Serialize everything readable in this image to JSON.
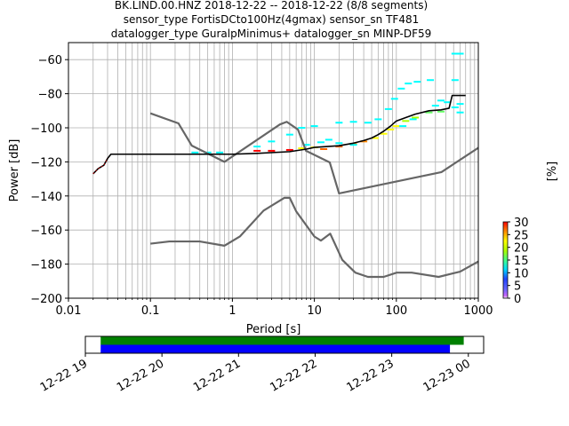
{
  "title_lines": [
    "BK.LIND.00.HNZ   2018-12-22 -- 2018-12-22  (8/8 segments)",
    "sensor_type FortisDCto100Hz(4gmax) sensor_sn TF481",
    "datalogger_type GuralpMinimus+ datalogger_sn MINP-DF59"
  ],
  "chart_data": [
    {
      "type": "line",
      "xlabel": "Period [s]",
      "ylabel": "Power [dB]",
      "xscale": "log",
      "xlim": [
        0.01,
        1000
      ],
      "ylim": [
        -200,
        -50
      ],
      "grid": true,
      "x_ticks": [
        "0.01",
        "0.1",
        "1",
        "10",
        "100",
        "1000"
      ],
      "y_ticks": [
        "−60",
        "−80",
        "−100",
        "−120",
        "−140",
        "−160",
        "−180",
        "−200"
      ],
      "colorbar": {
        "label": "[%]",
        "range": [
          0,
          30
        ],
        "ticks": [
          "0",
          "5",
          "10",
          "15",
          "20",
          "25",
          "30"
        ],
        "colormap": "pqlx"
      },
      "series": [
        {
          "role": "noise-model-high",
          "color": "#666666",
          "points": [
            [
              0.1,
              -91.5
            ],
            [
              0.22,
              -97.4
            ],
            [
              0.32,
              -110.5
            ],
            [
              0.8,
              -120
            ],
            [
              3.8,
              -98
            ],
            [
              4.6,
              -96.5
            ],
            [
              6.3,
              -101
            ],
            [
              7.9,
              -113.5
            ],
            [
              15.4,
              -120.3
            ],
            [
              20,
              -138.5
            ],
            [
              354.8,
              -126
            ],
            [
              10000,
              -80
            ]
          ]
        },
        {
          "role": "noise-model-low",
          "color": "#666666",
          "points": [
            [
              0.1,
              -168
            ],
            [
              0.17,
              -166.7
            ],
            [
              0.4,
              -166.7
            ],
            [
              0.8,
              -169.2
            ],
            [
              1.24,
              -163.7
            ],
            [
              2.4,
              -148.6
            ],
            [
              4.3,
              -141.1
            ],
            [
              5,
              -141.1
            ],
            [
              6,
              -149
            ],
            [
              10,
              -163.8
            ],
            [
              12,
              -166.2
            ],
            [
              15.6,
              -162.1
            ],
            [
              21.9,
              -177.5
            ],
            [
              31.6,
              -185
            ],
            [
              45,
              -187.5
            ],
            [
              70,
              -187.5
            ],
            [
              101,
              -185
            ],
            [
              154,
              -185
            ],
            [
              328,
              -187.5
            ],
            [
              600,
              -184.4
            ],
            [
              10000,
              -151.5
            ]
          ]
        },
        {
          "role": "mode",
          "color": "#000000",
          "points": [
            [
              0.02,
              -127
            ],
            [
              0.023,
              -124
            ],
            [
              0.027,
              -122
            ],
            [
              0.03,
              -118
            ],
            [
              0.033,
              -115.5
            ],
            [
              0.1,
              -115.5
            ],
            [
              1,
              -115.5
            ],
            [
              2,
              -115
            ],
            [
              5,
              -114
            ],
            [
              8,
              -112.5
            ],
            [
              10,
              -111.5
            ],
            [
              20,
              -110.5
            ],
            [
              30,
              -109
            ],
            [
              40,
              -107.5
            ],
            [
              50,
              -106
            ],
            [
              60,
              -104
            ],
            [
              70,
              -102
            ],
            [
              85,
              -99
            ],
            [
              100,
              -96
            ],
            [
              130,
              -94
            ],
            [
              170,
              -92
            ],
            [
              250,
              -90
            ],
            [
              350,
              -89.5
            ],
            [
              440,
              -88.5
            ],
            [
              480,
              -81
            ],
            [
              700,
              -81
            ]
          ]
        }
      ],
      "pdf_cells": [
        {
          "p": 0.35,
          "db": -114.5,
          "pct": 12,
          "color": "#00ffff"
        },
        {
          "p": 0.5,
          "db": -114.5,
          "pct": 12,
          "color": "#00ffff"
        },
        {
          "p": 0.7,
          "db": -114.5,
          "pct": 12,
          "color": "#00ffff"
        },
        {
          "p": 2,
          "db": -113.5,
          "pct": 28,
          "color": "#ff0000"
        },
        {
          "p": 3,
          "db": -113.5,
          "pct": 28,
          "color": "#ff0000"
        },
        {
          "p": 5,
          "db": -113,
          "pct": 28,
          "color": "#ff0000"
        },
        {
          "p": 7,
          "db": -112,
          "pct": 22,
          "color": "#ffff00"
        },
        {
          "p": 10,
          "db": -111.5,
          "pct": 22,
          "color": "#ffff00"
        },
        {
          "p": 13,
          "db": -112.5,
          "pct": 26,
          "color": "#ff6600"
        },
        {
          "p": 20,
          "db": -111,
          "pct": 26,
          "color": "#ff6600"
        },
        {
          "p": 30,
          "db": -109.5,
          "pct": 24,
          "color": "#ff8800"
        },
        {
          "p": 40,
          "db": -108,
          "pct": 24,
          "color": "#ff8800"
        },
        {
          "p": 55,
          "db": -106,
          "pct": 22,
          "color": "#ffff00"
        },
        {
          "p": 70,
          "db": -103.5,
          "pct": 22,
          "color": "#ffff00"
        },
        {
          "p": 85,
          "db": -101,
          "pct": 20,
          "color": "#ffff00"
        },
        {
          "p": 100,
          "db": -99,
          "pct": 20,
          "color": "#ffff00"
        },
        {
          "p": 130,
          "db": -96,
          "pct": 18,
          "color": "#aaff00"
        },
        {
          "p": 170,
          "db": -94,
          "pct": 18,
          "color": "#aaff00"
        },
        {
          "p": 250,
          "db": -91,
          "pct": 16,
          "color": "#66ff66"
        },
        {
          "p": 350,
          "db": -90.5,
          "pct": 16,
          "color": "#66ff66"
        },
        {
          "p": 8,
          "db": -110,
          "pct": 12,
          "color": "#00ffff"
        },
        {
          "p": 12,
          "db": -108.5,
          "pct": 12,
          "color": "#00ffff"
        },
        {
          "p": 15,
          "db": -107,
          "pct": 12,
          "color": "#00ffff"
        },
        {
          "p": 20,
          "db": -109,
          "pct": 12,
          "color": "#00ffff"
        },
        {
          "p": 30,
          "db": -110,
          "pct": 12,
          "color": "#00ffff"
        },
        {
          "p": 20,
          "db": -97,
          "pct": 12,
          "color": "#00ffff"
        },
        {
          "p": 30,
          "db": -96.5,
          "pct": 12,
          "color": "#00ffff"
        },
        {
          "p": 45,
          "db": -97,
          "pct": 12,
          "color": "#00ffff"
        },
        {
          "p": 7,
          "db": -100,
          "pct": 12,
          "color": "#00ffff"
        },
        {
          "p": 10,
          "db": -99,
          "pct": 12,
          "color": "#00ffff"
        },
        {
          "p": 5,
          "db": -104,
          "pct": 12,
          "color": "#00ffff"
        },
        {
          "p": 3,
          "db": -108,
          "pct": 12,
          "color": "#00ffff"
        },
        {
          "p": 2,
          "db": -111,
          "pct": 12,
          "color": "#00ffff"
        },
        {
          "p": 60,
          "db": -95,
          "pct": 12,
          "color": "#00ffff"
        },
        {
          "p": 80,
          "db": -89,
          "pct": 12,
          "color": "#00ffff"
        },
        {
          "p": 95,
          "db": -83,
          "pct": 12,
          "color": "#00ffff"
        },
        {
          "p": 115,
          "db": -77,
          "pct": 12,
          "color": "#00ffff"
        },
        {
          "p": 140,
          "db": -74,
          "pct": 12,
          "color": "#00ffff"
        },
        {
          "p": 180,
          "db": -73,
          "pct": 12,
          "color": "#00ffff"
        },
        {
          "p": 260,
          "db": -72,
          "pct": 12,
          "color": "#00ffff"
        },
        {
          "p": 520,
          "db": -72,
          "pct": 12,
          "color": "#00ffff"
        },
        {
          "p": 520,
          "db": -56.5,
          "pct": 12,
          "color": "#00ffff"
        },
        {
          "p": 600,
          "db": -56.5,
          "pct": 12,
          "color": "#00ffff"
        },
        {
          "p": 420,
          "db": -85,
          "pct": 12,
          "color": "#00ffff"
        },
        {
          "p": 520,
          "db": -88,
          "pct": 12,
          "color": "#00ffff"
        },
        {
          "p": 600,
          "db": -91,
          "pct": 12,
          "color": "#00ffff"
        },
        {
          "p": 350,
          "db": -84,
          "pct": 12,
          "color": "#00ffff"
        },
        {
          "p": 300,
          "db": -87,
          "pct": 12,
          "color": "#00ffff"
        },
        {
          "p": 600,
          "db": -86,
          "pct": 12,
          "color": "#00ffff"
        },
        {
          "p": 120,
          "db": -99,
          "pct": 12,
          "color": "#00ffff"
        },
        {
          "p": 160,
          "db": -95,
          "pct": 12,
          "color": "#00ffff"
        }
      ]
    },
    {
      "type": "timeline",
      "x_ticks": [
        "12-22 19",
        "12-22 20",
        "12-22 21",
        "12-22 22",
        "12-22 23",
        "12-23 00"
      ],
      "bars": [
        {
          "role": "data-available",
          "color": "#008000",
          "start_h": 19.2,
          "end_h": 23.94
        },
        {
          "role": "psd-used",
          "color": "#0000ff",
          "start_h": 19.2,
          "end_h": 23.76
        }
      ],
      "xlim_h": [
        19.0,
        24.2
      ]
    }
  ]
}
